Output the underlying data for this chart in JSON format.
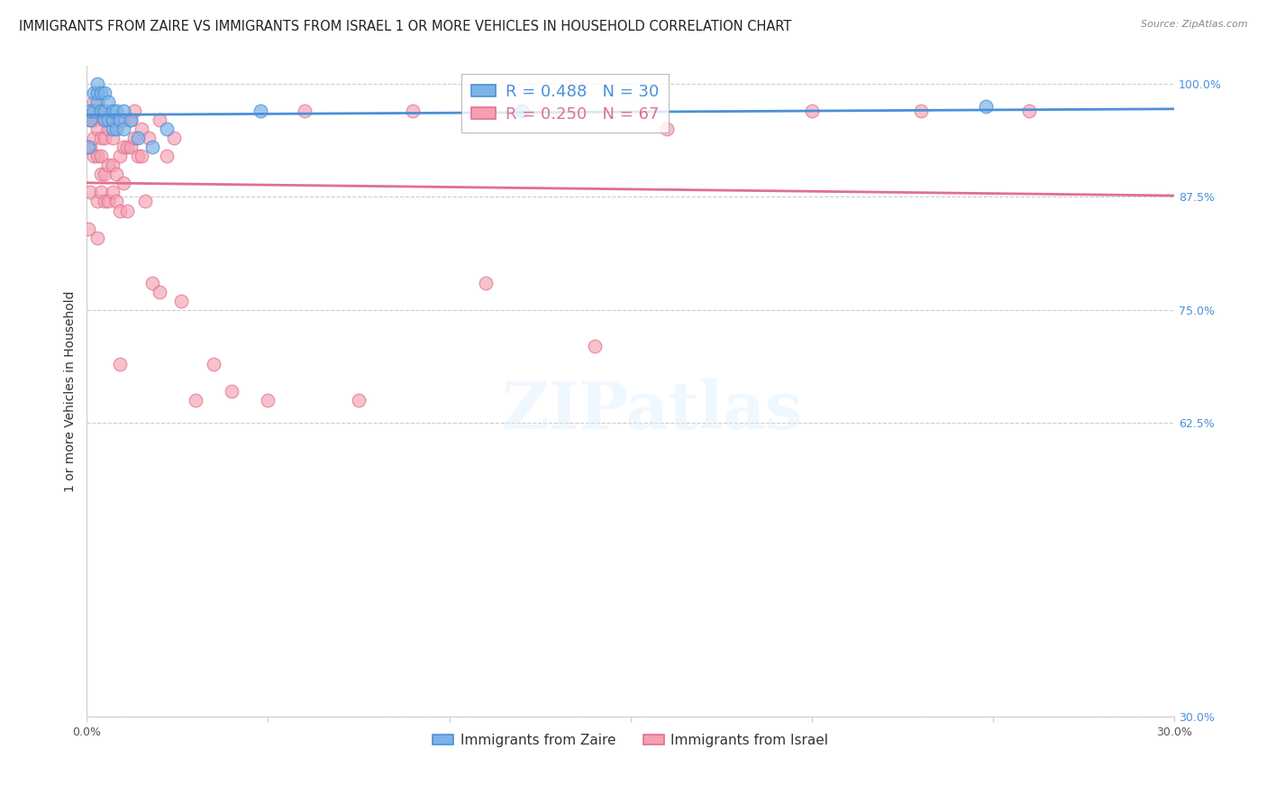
{
  "title": "IMMIGRANTS FROM ZAIRE VS IMMIGRANTS FROM ISRAEL 1 OR MORE VEHICLES IN HOUSEHOLD CORRELATION CHART",
  "source": "Source: ZipAtlas.com",
  "ylabel": "1 or more Vehicles in Household",
  "xlim": [
    0.0,
    0.3
  ],
  "ylim": [
    0.3,
    1.02
  ],
  "x_ticks": [
    0.0,
    0.05,
    0.1,
    0.15,
    0.2,
    0.25,
    0.3
  ],
  "x_tick_labels": [
    "0.0%",
    "",
    "",
    "",
    "",
    "",
    "30.0%"
  ],
  "y_ticks": [
    0.3,
    0.625,
    0.75,
    0.875,
    1.0
  ],
  "y_tick_labels": [
    "30.0%",
    "62.5%",
    "75.0%",
    "87.5%",
    "100.0%"
  ],
  "zaire_r": 0.488,
  "zaire_n": 30,
  "israel_r": 0.25,
  "israel_n": 67,
  "zaire_color": "#7eb3e8",
  "israel_color": "#f4a0b0",
  "zaire_line_color": "#4a90d9",
  "israel_line_color": "#e07090",
  "legend_r_color": "#4a90d9",
  "legend_r2_color": "#e07090",
  "zaire_x": [
    0.0005,
    0.001,
    0.001,
    0.002,
    0.002,
    0.003,
    0.003,
    0.003,
    0.004,
    0.004,
    0.005,
    0.005,
    0.005,
    0.006,
    0.006,
    0.007,
    0.007,
    0.007,
    0.008,
    0.008,
    0.009,
    0.01,
    0.01,
    0.012,
    0.014,
    0.018,
    0.022,
    0.048,
    0.12,
    0.248
  ],
  "zaire_y": [
    0.93,
    0.96,
    0.97,
    0.97,
    0.99,
    0.98,
    0.99,
    1.0,
    0.97,
    0.99,
    0.96,
    0.97,
    0.99,
    0.96,
    0.98,
    0.95,
    0.96,
    0.97,
    0.95,
    0.97,
    0.96,
    0.95,
    0.97,
    0.96,
    0.94,
    0.93,
    0.95,
    0.97,
    0.97,
    0.975
  ],
  "israel_x": [
    0.0005,
    0.001,
    0.001,
    0.001,
    0.002,
    0.002,
    0.002,
    0.002,
    0.003,
    0.003,
    0.003,
    0.003,
    0.003,
    0.004,
    0.004,
    0.004,
    0.004,
    0.004,
    0.005,
    0.005,
    0.005,
    0.005,
    0.006,
    0.006,
    0.006,
    0.007,
    0.007,
    0.007,
    0.007,
    0.008,
    0.008,
    0.009,
    0.009,
    0.009,
    0.01,
    0.01,
    0.01,
    0.011,
    0.011,
    0.012,
    0.012,
    0.013,
    0.013,
    0.014,
    0.015,
    0.015,
    0.016,
    0.017,
    0.018,
    0.02,
    0.02,
    0.022,
    0.024,
    0.026,
    0.03,
    0.035,
    0.04,
    0.05,
    0.06,
    0.075,
    0.09,
    0.11,
    0.14,
    0.16,
    0.2,
    0.23,
    0.26
  ],
  "israel_y": [
    0.84,
    0.88,
    0.93,
    0.96,
    0.92,
    0.94,
    0.96,
    0.98,
    0.83,
    0.87,
    0.92,
    0.95,
    0.97,
    0.88,
    0.9,
    0.92,
    0.94,
    0.97,
    0.87,
    0.9,
    0.94,
    0.96,
    0.87,
    0.91,
    0.95,
    0.88,
    0.91,
    0.94,
    0.96,
    0.87,
    0.9,
    0.69,
    0.86,
    0.92,
    0.89,
    0.93,
    0.96,
    0.86,
    0.93,
    0.93,
    0.96,
    0.94,
    0.97,
    0.92,
    0.92,
    0.95,
    0.87,
    0.94,
    0.78,
    0.77,
    0.96,
    0.92,
    0.94,
    0.76,
    0.65,
    0.69,
    0.66,
    0.65,
    0.97,
    0.65,
    0.97,
    0.78,
    0.71,
    0.95,
    0.97,
    0.97,
    0.97
  ],
  "background_color": "#ffffff",
  "grid_color": "#cccccc",
  "title_fontsize": 10.5,
  "axis_label_fontsize": 10,
  "tick_fontsize": 9,
  "legend_fontsize": 13
}
